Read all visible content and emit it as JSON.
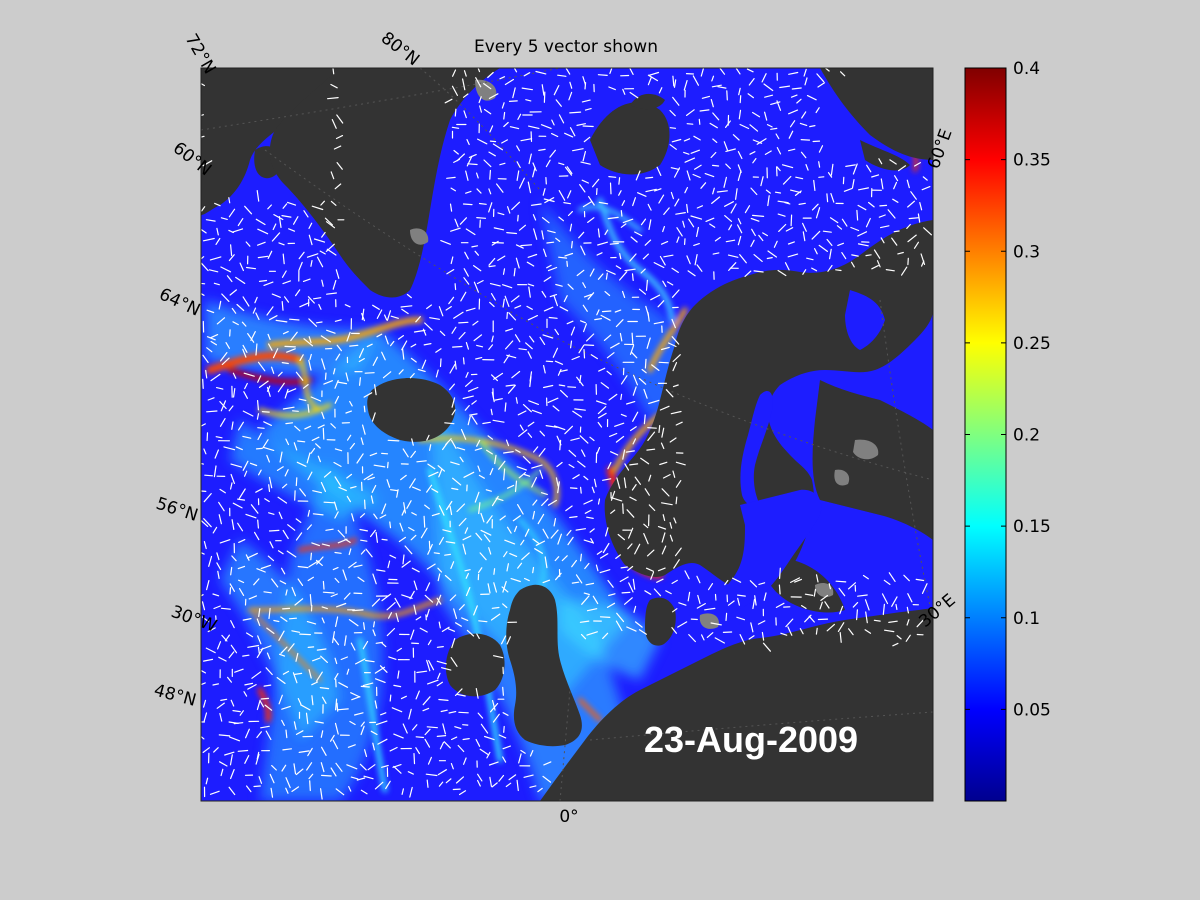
{
  "title": "Every 5 vector shown",
  "date": "23-Aug-2009",
  "latitude_labels": [
    "72°N",
    "80°N",
    "60°N",
    "64°N",
    "56°N",
    "48°N"
  ],
  "longitude_labels": [
    "30°W",
    "0°",
    "30°E",
    "60°E"
  ],
  "colorbar": {
    "min": 0,
    "max": 0.4,
    "ticks": [
      "0.4",
      "0.35",
      "0.3",
      "0.25",
      "0.2",
      "0.15",
      "0.1",
      "0.05"
    ],
    "colormap": "jet"
  },
  "colors": {
    "background": "#cccccc",
    "land": "#333333",
    "lake": "#808080",
    "ocean_low": "#1a1aff",
    "vectors": "#ffffff"
  }
}
